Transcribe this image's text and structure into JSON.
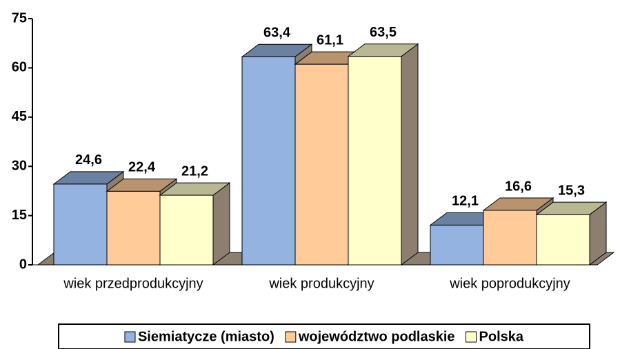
{
  "chart_data": {
    "type": "bar3d",
    "categories": [
      "wiek przedprodukcyjny",
      "wiek produkcyjny",
      "wiek poprodukcyjny"
    ],
    "series": [
      {
        "name": "Siemiatycze (miasto)",
        "color": "#95b3e0",
        "values": [
          24.6,
          63.4,
          12.1
        ],
        "value_labels": [
          "24,6",
          "63,4",
          "12,1"
        ]
      },
      {
        "name": "województwo podlaskie",
        "color": "#ffcc99",
        "values": [
          22.4,
          61.1,
          16.6
        ],
        "value_labels": [
          "22,4",
          "61,1",
          "16,6"
        ]
      },
      {
        "name": "Polska",
        "color": "#ffffcc",
        "values": [
          21.2,
          63.5,
          15.3
        ],
        "value_labels": [
          "21,2",
          "63,5",
          "15,3"
        ]
      }
    ],
    "ylim": [
      0,
      75
    ],
    "yticks": [
      0,
      15,
      30,
      45,
      60,
      75
    ],
    "legend": "bottom"
  }
}
